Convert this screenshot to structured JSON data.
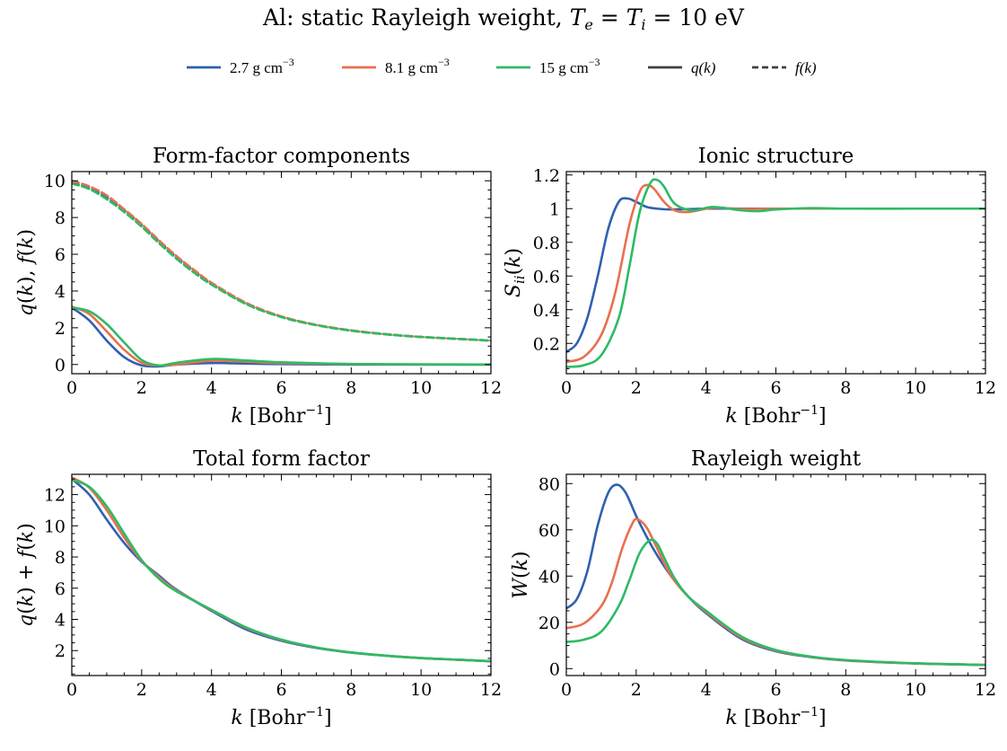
{
  "figure": {
    "title_prefix": "Al: static Rayleigh weight, ",
    "title_math_a": "T",
    "title_math_a_sub": "e",
    "title_math_eq1": " = ",
    "title_math_b": "T",
    "title_math_b_sub": "i",
    "title_math_eq2": " = 10 eV"
  },
  "legend": {
    "entries": [
      {
        "label": "2.7 g cm",
        "sup": "−3",
        "color": "#3060b0",
        "style": "solid"
      },
      {
        "label": "8.1 g cm",
        "sup": "−3",
        "color": "#e8704e",
        "style": "solid"
      },
      {
        "label": "15 g cm",
        "sup": "−3",
        "color": "#2dbb64",
        "style": "solid"
      },
      {
        "label": "q(k)",
        "sup": "",
        "color": "#404040",
        "style": "solid"
      },
      {
        "label": "f(k)",
        "sup": "",
        "color": "#404040",
        "style": "dashed"
      }
    ]
  },
  "chart_data": [
    {
      "type": "line",
      "title": "Form-factor components",
      "xlabel": "k [Bohr⁻¹]",
      "ylabel": "q(k), f(k)",
      "xlim": [
        0,
        12
      ],
      "ylim": [
        -0.5,
        10.5
      ],
      "xticks": [
        0,
        2,
        4,
        6,
        8,
        10,
        12
      ],
      "yticks": [
        0,
        2,
        4,
        6,
        8,
        10
      ],
      "grid": false,
      "series": [
        {
          "name": "2.7 g cm⁻³",
          "kind": "q",
          "style": "solid",
          "color": "#3060b0",
          "x": [
            0,
            0.5,
            1,
            1.5,
            2,
            2.5,
            3,
            4,
            5,
            6,
            8,
            10,
            12
          ],
          "y": [
            3.1,
            2.4,
            1.3,
            0.4,
            -0.05,
            -0.1,
            0.0,
            0.08,
            0.05,
            0.02,
            0.0,
            0.0,
            0.0
          ]
        },
        {
          "name": "8.1 g cm⁻³",
          "kind": "q",
          "style": "solid",
          "color": "#e8704e",
          "x": [
            0,
            0.5,
            1,
            1.5,
            2,
            2.5,
            3,
            4,
            5,
            6,
            8,
            10,
            12
          ],
          "y": [
            3.15,
            2.75,
            1.8,
            0.8,
            0.1,
            -0.05,
            0.0,
            0.2,
            0.15,
            0.07,
            0.02,
            0.0,
            0.0
          ]
        },
        {
          "name": "15 g cm⁻³",
          "kind": "q",
          "style": "solid",
          "color": "#2dbb64",
          "x": [
            0,
            0.5,
            1,
            1.5,
            2,
            2.5,
            3,
            4,
            5,
            6,
            8,
            10,
            12
          ],
          "y": [
            3.1,
            2.9,
            2.2,
            1.2,
            0.25,
            -0.05,
            0.1,
            0.3,
            0.22,
            0.12,
            0.03,
            0.01,
            0.0
          ]
        },
        {
          "name": "2.7 g cm⁻³",
          "kind": "f",
          "style": "dashed",
          "color": "#3060b0",
          "x": [
            0,
            0.5,
            1,
            1.5,
            2,
            2.5,
            3,
            3.5,
            4,
            5,
            6,
            7,
            8,
            9,
            10,
            11,
            12
          ],
          "y": [
            9.9,
            9.6,
            9.1,
            8.4,
            7.6,
            6.7,
            5.85,
            5.1,
            4.4,
            3.3,
            2.6,
            2.15,
            1.85,
            1.65,
            1.5,
            1.4,
            1.3
          ]
        },
        {
          "name": "8.1 g cm⁻³",
          "kind": "f",
          "style": "dashed",
          "color": "#e8704e",
          "x": [
            0,
            0.5,
            1,
            1.5,
            2,
            2.5,
            3,
            3.5,
            4,
            5,
            6,
            7,
            8,
            9,
            10,
            11,
            12
          ],
          "y": [
            10.0,
            9.7,
            9.2,
            8.45,
            7.65,
            6.75,
            5.9,
            5.15,
            4.45,
            3.35,
            2.62,
            2.16,
            1.86,
            1.65,
            1.5,
            1.4,
            1.3
          ]
        },
        {
          "name": "15 g cm⁻³",
          "kind": "f",
          "style": "dashed",
          "color": "#2dbb64",
          "x": [
            0,
            0.5,
            1,
            1.5,
            2,
            2.5,
            3,
            3.5,
            4,
            5,
            6,
            7,
            8,
            9,
            10,
            11,
            12
          ],
          "y": [
            9.85,
            9.55,
            9.0,
            8.3,
            7.5,
            6.6,
            5.75,
            5.0,
            4.35,
            3.28,
            2.58,
            2.14,
            1.84,
            1.64,
            1.5,
            1.4,
            1.3
          ]
        }
      ]
    },
    {
      "type": "line",
      "title": "Ionic structure",
      "xlabel": "k [Bohr⁻¹]",
      "ylabel": "Sᵢᵢ(k)",
      "xlim": [
        0,
        12
      ],
      "ylim": [
        0.02,
        1.22
      ],
      "xticks": [
        0,
        2,
        4,
        6,
        8,
        10,
        12
      ],
      "yticks": [
        0.2,
        0.4,
        0.6,
        0.8,
        1.0,
        1.2
      ],
      "grid": false,
      "series": [
        {
          "name": "2.7 g cm⁻³",
          "style": "solid",
          "color": "#3060b0",
          "x": [
            0,
            0.3,
            0.6,
            0.9,
            1.2,
            1.5,
            1.75,
            2.0,
            2.3,
            2.6,
            3.0,
            4.0,
            5.0,
            6.0,
            8.0,
            10.0,
            12.0
          ],
          "y": [
            0.15,
            0.2,
            0.35,
            0.6,
            0.88,
            1.04,
            1.06,
            1.04,
            1.01,
            1.0,
            0.995,
            1.0,
            1.0,
            1.0,
            1.0,
            1.0,
            1.0
          ]
        },
        {
          "name": "8.1 g cm⁻³",
          "style": "solid",
          "color": "#e8704e",
          "x": [
            0,
            0.5,
            1.0,
            1.4,
            1.8,
            2.1,
            2.3,
            2.5,
            2.8,
            3.1,
            3.5,
            4.2,
            5.0,
            6.0,
            8.0,
            10.0,
            12.0
          ],
          "y": [
            0.09,
            0.12,
            0.25,
            0.5,
            0.9,
            1.1,
            1.14,
            1.12,
            1.04,
            0.99,
            0.98,
            1.005,
            0.998,
            1.0,
            1.0,
            1.0,
            1.0
          ]
        },
        {
          "name": "15 g cm⁻³",
          "style": "solid",
          "color": "#2dbb64",
          "x": [
            0,
            0.5,
            1.0,
            1.5,
            1.8,
            2.1,
            2.4,
            2.6,
            2.8,
            3.1,
            3.6,
            4.2,
            5.0,
            5.5,
            6.0,
            7.0,
            8.0,
            10.0,
            12.0
          ],
          "y": [
            0.06,
            0.07,
            0.13,
            0.35,
            0.65,
            0.98,
            1.15,
            1.17,
            1.13,
            1.03,
            0.99,
            1.01,
            0.99,
            0.985,
            0.995,
            1.003,
            1.0,
            1.0,
            1.0
          ]
        }
      ]
    },
    {
      "type": "line",
      "title": "Total form factor",
      "xlabel": "k [Bohr⁻¹]",
      "ylabel": "q(k) + f(k)",
      "xlim": [
        0,
        12
      ],
      "ylim": [
        0.4,
        13.3
      ],
      "xticks": [
        0,
        2,
        4,
        6,
        8,
        10,
        12
      ],
      "yticks": [
        2,
        4,
        6,
        8,
        10,
        12
      ],
      "grid": false,
      "series": [
        {
          "name": "2.7 g cm⁻³",
          "style": "solid",
          "color": "#3060b0",
          "x": [
            0,
            0.5,
            1,
            1.5,
            2,
            2.5,
            3,
            4,
            5,
            6,
            7,
            8,
            9,
            10,
            11,
            12
          ],
          "y": [
            13.0,
            12.0,
            10.4,
            8.9,
            7.7,
            6.8,
            5.9,
            4.55,
            3.35,
            2.63,
            2.17,
            1.87,
            1.67,
            1.52,
            1.42,
            1.32
          ]
        },
        {
          "name": "8.1 g cm⁻³",
          "style": "solid",
          "color": "#e8704e",
          "x": [
            0,
            0.5,
            1,
            1.5,
            2,
            2.5,
            3,
            4,
            5,
            6,
            7,
            8,
            9,
            10,
            11,
            12
          ],
          "y": [
            13.1,
            12.45,
            11.0,
            9.25,
            7.75,
            6.7,
            5.85,
            4.6,
            3.45,
            2.68,
            2.2,
            1.88,
            1.67,
            1.52,
            1.42,
            1.32
          ]
        },
        {
          "name": "15 g cm⁻³",
          "style": "solid",
          "color": "#2dbb64",
          "x": [
            0,
            0.5,
            1,
            1.5,
            2,
            2.5,
            3,
            4,
            5,
            6,
            7,
            8,
            9,
            10,
            11,
            12
          ],
          "y": [
            12.95,
            12.5,
            11.25,
            9.5,
            7.8,
            6.6,
            5.8,
            4.62,
            3.48,
            2.7,
            2.2,
            1.88,
            1.67,
            1.52,
            1.42,
            1.32
          ]
        }
      ]
    },
    {
      "type": "line",
      "title": "Rayleigh weight",
      "xlabel": "k [Bohr⁻¹]",
      "ylabel": "W(k)",
      "xlim": [
        0,
        12
      ],
      "ylim": [
        -3,
        84
      ],
      "xticks": [
        0,
        2,
        4,
        6,
        8,
        10,
        12
      ],
      "yticks": [
        0,
        20,
        40,
        60,
        80
      ],
      "grid": false,
      "series": [
        {
          "name": "2.7 g cm⁻³",
          "style": "solid",
          "color": "#3060b0",
          "x": [
            0,
            0.3,
            0.6,
            0.9,
            1.2,
            1.45,
            1.7,
            2.0,
            2.3,
            2.6,
            3.0,
            3.5,
            4.0,
            5.0,
            6.0,
            7.0,
            8.0,
            10.0,
            12.0
          ],
          "y": [
            26.0,
            30.0,
            42.0,
            62.0,
            76.0,
            79.5,
            76.0,
            66.0,
            57.0,
            49.0,
            40.0,
            31.0,
            24.0,
            13.0,
            7.5,
            5.0,
            3.5,
            2.2,
            1.6
          ]
        },
        {
          "name": "8.1 g cm⁻³",
          "style": "solid",
          "color": "#e8704e",
          "x": [
            0,
            0.5,
            1.0,
            1.3,
            1.6,
            1.9,
            2.05,
            2.3,
            2.6,
            3.0,
            3.5,
            4.0,
            5.0,
            6.0,
            7.0,
            8.0,
            10.0,
            12.0
          ],
          "y": [
            17.5,
            19.5,
            27.0,
            37.0,
            52.0,
            63.0,
            64.5,
            61.0,
            52.0,
            40.0,
            31.0,
            24.5,
            13.5,
            7.8,
            5.1,
            3.6,
            2.2,
            1.6
          ]
        },
        {
          "name": "15 g cm⁻³",
          "style": "solid",
          "color": "#2dbb64",
          "x": [
            0,
            0.5,
            1.0,
            1.5,
            1.8,
            2.1,
            2.4,
            2.6,
            2.8,
            3.1,
            3.5,
            4.0,
            5.0,
            6.0,
            7.0,
            8.0,
            10.0,
            12.0
          ],
          "y": [
            11.5,
            12.5,
            16.0,
            27.0,
            38.0,
            50.0,
            55.5,
            54.0,
            48.0,
            39.0,
            31.0,
            25.0,
            14.0,
            8.0,
            5.2,
            3.7,
            2.3,
            1.6
          ]
        }
      ]
    }
  ]
}
